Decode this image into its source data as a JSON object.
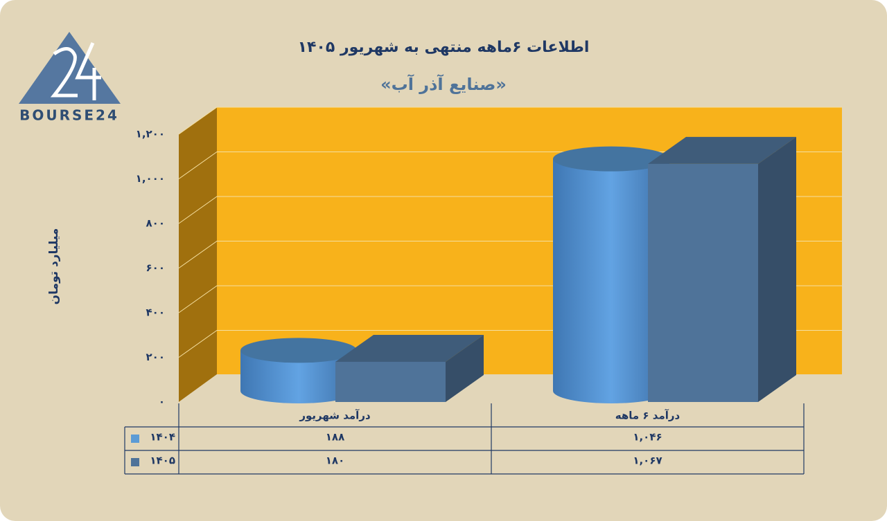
{
  "logo": "BOURSE24",
  "chart_data": {
    "type": "bar3d",
    "title": "اطلاعات ۶ماهه منتهی به شهریور ۱۴۰۵",
    "subtitle": "«صنایع آذر آب»",
    "y_label": "میلیارد تومان",
    "categories": [
      "درآمد شهریور",
      "درآمد ۶ ماهه"
    ],
    "series": [
      {
        "name": "۱۴۰۴",
        "color": "#5b9bd5",
        "shape": "cylinder",
        "values": [
          188,
          1046
        ],
        "value_labels": [
          "۱۸۸",
          "۱,۰۴۶"
        ]
      },
      {
        "name": "۱۴۰۵",
        "color": "#4f7399",
        "shape": "box",
        "values": [
          180,
          1067
        ],
        "value_labels": [
          "۱۸۰",
          "۱,۰۶۷"
        ]
      }
    ],
    "ylim": [
      0,
      1200
    ],
    "yticks": [
      {
        "value": 0,
        "label": "۰"
      },
      {
        "value": 200,
        "label": "۲۰۰"
      },
      {
        "value": 400,
        "label": "۴۰۰"
      },
      {
        "value": 600,
        "label": "۶۰۰"
      },
      {
        "value": 800,
        "label": "۸۰۰"
      },
      {
        "value": 1000,
        "label": "۱,۰۰۰"
      },
      {
        "value": 1200,
        "label": "۱,۲۰۰"
      }
    ],
    "grid": true,
    "data_table": true
  }
}
